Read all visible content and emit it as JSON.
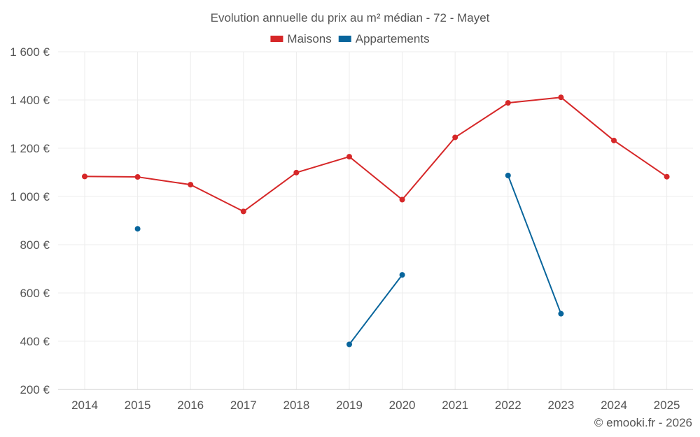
{
  "chart_data": {
    "type": "line",
    "title": "Evolution annuelle du prix au m² médian - 72 - Mayet",
    "xlabel": "",
    "ylabel": "",
    "categories": [
      "2014",
      "2015",
      "2016",
      "2017",
      "2018",
      "2019",
      "2020",
      "2021",
      "2022",
      "2023",
      "2024",
      "2025"
    ],
    "ylim": [
      200,
      1600
    ],
    "yticks": [
      200,
      400,
      600,
      800,
      1000,
      1200,
      1400,
      1600
    ],
    "ytick_labels": [
      "200 €",
      "400 €",
      "600 €",
      "800 €",
      "1 000 €",
      "1 200 €",
      "1 400 €",
      "1 600 €"
    ],
    "grid": true,
    "legend_position": "top-center",
    "series": [
      {
        "name": "Maisons",
        "color": "#d62728",
        "values": [
          1083,
          1081,
          1049,
          938,
          1099,
          1165,
          987,
          1245,
          1388,
          1411,
          1232,
          1082
        ]
      },
      {
        "name": "Appartements",
        "color": "#08659c",
        "values": [
          null,
          866,
          null,
          null,
          null,
          387,
          675,
          null,
          1087,
          514,
          null,
          null
        ]
      }
    ],
    "credit": "© emooki.fr - 2026"
  }
}
